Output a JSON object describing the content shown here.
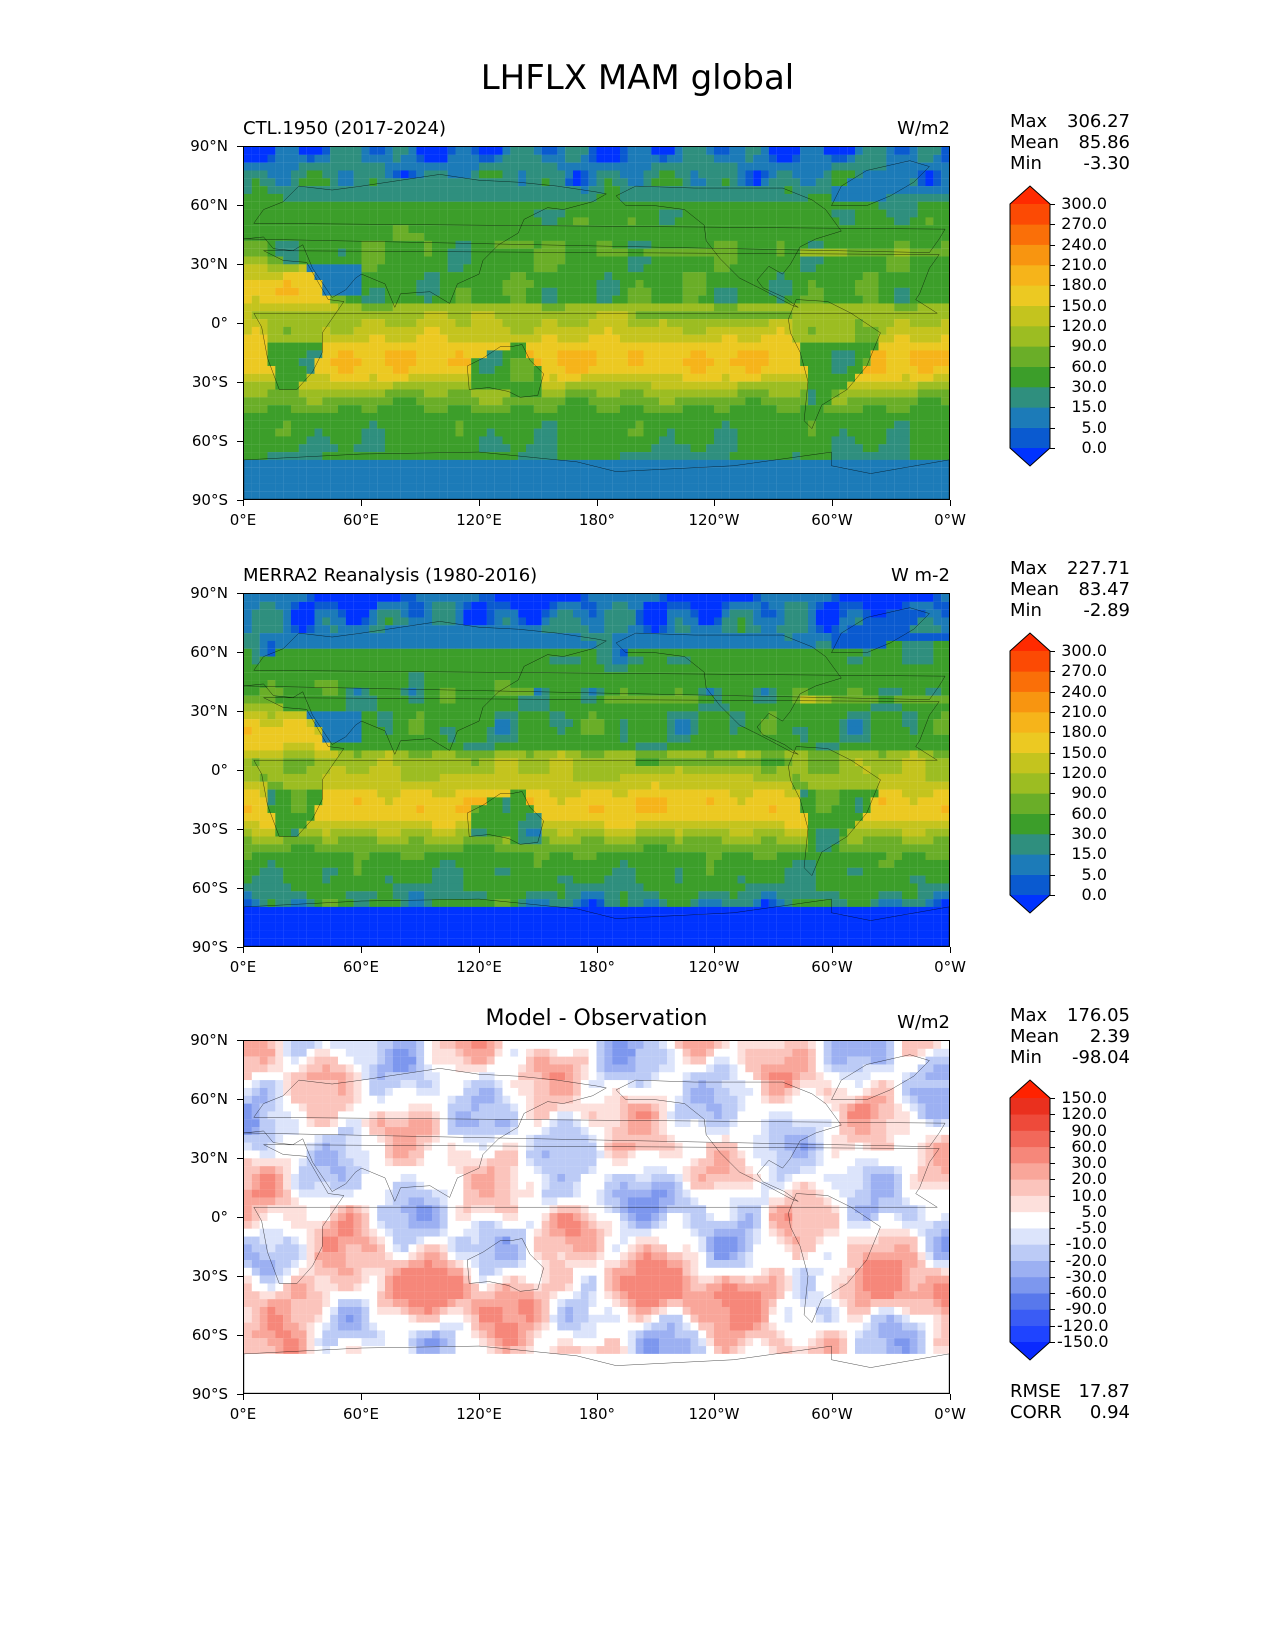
{
  "figure": {
    "title": "LHFLX MAM global"
  },
  "axes": {
    "lat_labels": [
      "90°N",
      "60°N",
      "30°N",
      "0°",
      "30°S",
      "60°S",
      "90°S"
    ],
    "lon_labels": [
      "0°E",
      "60°E",
      "120°E",
      "180°",
      "120°W",
      "60°W",
      "0°W"
    ]
  },
  "chart_data": [
    {
      "type": "heatmap",
      "title": "CTL.1950 (2017-2024)",
      "units": "W/m2",
      "stats": {
        "max_label": "Max",
        "max": "306.27",
        "mean_label": "Mean",
        "mean": "85.86",
        "min_label": "Min",
        "min": "-3.30"
      },
      "xlim": [
        0,
        360
      ],
      "ylim": [
        -90,
        90
      ],
      "colorbar": {
        "levels": [
          "0.0",
          "5.0",
          "15.0",
          "30.0",
          "60.0",
          "90.0",
          "120.0",
          "150.0",
          "180.0",
          "210.0",
          "240.0",
          "270.0",
          "300.0"
        ],
        "colors": [
          "#0033ff",
          "#0a5ad0",
          "#1c7bb8",
          "#2f8f7e",
          "#3c9e2a",
          "#6aae28",
          "#9cbd22",
          "#c4c41e",
          "#ecc922",
          "#f6b41a",
          "#f89510",
          "#fa6f08",
          "#fc4a04",
          "#ff2a00"
        ]
      }
    },
    {
      "type": "heatmap",
      "title": "MERRA2 Reanalysis (1980-2016)",
      "units": "W m-2",
      "stats": {
        "max_label": "Max",
        "max": "227.71",
        "mean_label": "Mean",
        "mean": "83.47",
        "min_label": "Min",
        "min": "-2.89"
      },
      "xlim": [
        0,
        360
      ],
      "ylim": [
        -90,
        90
      ],
      "colorbar": {
        "levels": [
          "0.0",
          "5.0",
          "15.0",
          "30.0",
          "60.0",
          "90.0",
          "120.0",
          "150.0",
          "180.0",
          "210.0",
          "240.0",
          "270.0",
          "300.0"
        ],
        "colors": [
          "#0033ff",
          "#0a5ad0",
          "#1c7bb8",
          "#2f8f7e",
          "#3c9e2a",
          "#6aae28",
          "#9cbd22",
          "#c4c41e",
          "#ecc922",
          "#f6b41a",
          "#f89510",
          "#fa6f08",
          "#fc4a04",
          "#ff2a00"
        ]
      }
    },
    {
      "type": "heatmap",
      "title": "Model - Observation",
      "units": "W/m2",
      "stats": {
        "max_label": "Max",
        "max": "176.05",
        "mean_label": "Mean",
        "mean": "2.39",
        "min_label": "Min",
        "min": "-98.04"
      },
      "metrics": {
        "rmse_label": "RMSE",
        "rmse": "17.87",
        "corr_label": "CORR",
        "corr": "0.94"
      },
      "xlim": [
        0,
        360
      ],
      "ylim": [
        -90,
        90
      ],
      "colorbar": {
        "levels": [
          "-150.0",
          "-120.0",
          "-90.0",
          "-60.0",
          "-30.0",
          "-20.0",
          "-10.0",
          "-5.0",
          "5.0",
          "10.0",
          "20.0",
          "30.0",
          "60.0",
          "90.0",
          "120.0",
          "150.0"
        ],
        "colors": [
          "#0a2aff",
          "#1f44ff",
          "#3a5cf5",
          "#5878ec",
          "#7d97ee",
          "#9cb0f2",
          "#bccbf6",
          "#dce4fb",
          "#ffffff",
          "#fde0dc",
          "#fbc4bc",
          "#f9a69a",
          "#f6877a",
          "#f2685a",
          "#ee4a3a",
          "#ea301e",
          "#ff2200"
        ]
      }
    }
  ]
}
